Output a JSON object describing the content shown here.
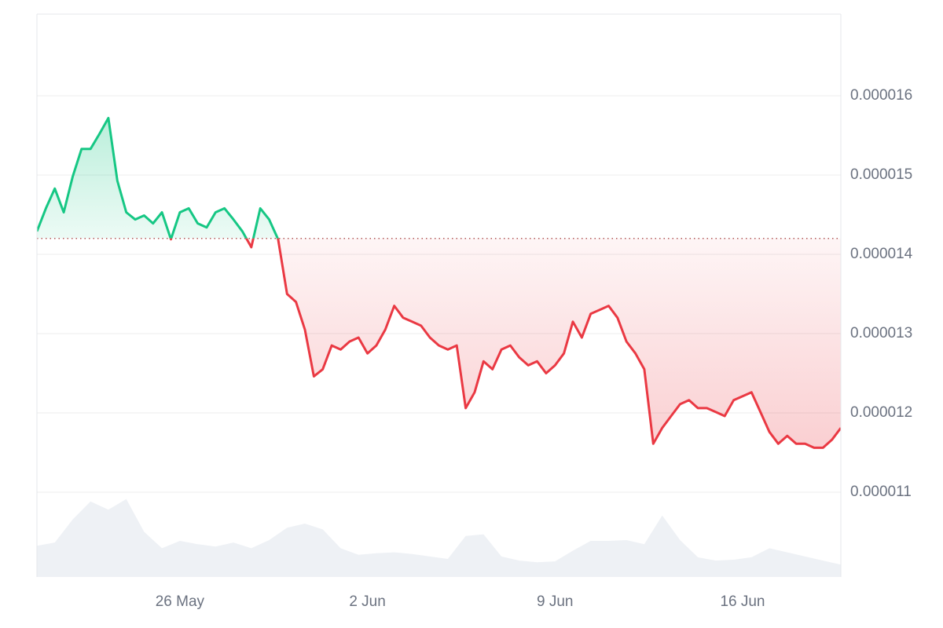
{
  "chart_data": {
    "type": "line",
    "categories": [
      null,
      null,
      null,
      null,
      null,
      null,
      null,
      null,
      null,
      null,
      null,
      null,
      null,
      null,
      null,
      null,
      "26 May",
      null,
      null,
      null,
      null,
      null,
      null,
      null,
      null,
      null,
      null,
      null,
      null,
      null,
      null,
      null,
      null,
      null,
      null,
      null,
      null,
      "2 Jun",
      null,
      null,
      null,
      null,
      null,
      null,
      null,
      null,
      null,
      null,
      null,
      null,
      null,
      null,
      null,
      null,
      null,
      null,
      null,
      null,
      "9 Jun",
      null,
      null,
      null,
      null,
      null,
      null,
      null,
      null,
      null,
      null,
      null,
      null,
      null,
      null,
      null,
      null,
      null,
      null,
      null,
      null,
      "16 Jun",
      null,
      null,
      null,
      null,
      null,
      null,
      null,
      null,
      null,
      null,
      null
    ],
    "values": [
      1.429e-05,
      1.458e-05,
      1.483e-05,
      1.453e-05,
      1.498e-05,
      1.533e-05,
      1.533e-05,
      1.552e-05,
      1.572e-05,
      1.493e-05,
      1.453e-05,
      1.444e-05,
      1.449e-05,
      1.439e-05,
      1.453e-05,
      1.419e-05,
      1.453e-05,
      1.458e-05,
      1.439e-05,
      1.434e-05,
      1.453e-05,
      1.458e-05,
      1.444e-05,
      1.429e-05,
      1.409e-05,
      1.458e-05,
      1.444e-05,
      1.419e-05,
      1.35e-05,
      1.34e-05,
      1.305e-05,
      1.246e-05,
      1.255e-05,
      1.285e-05,
      1.28e-05,
      1.29e-05,
      1.295e-05,
      1.275e-05,
      1.285e-05,
      1.305e-05,
      1.335e-05,
      1.32e-05,
      1.315e-05,
      1.31e-05,
      1.295e-05,
      1.285e-05,
      1.28e-05,
      1.285e-05,
      1.206e-05,
      1.226e-05,
      1.265e-05,
      1.255e-05,
      1.28e-05,
      1.285e-05,
      1.27e-05,
      1.26e-05,
      1.265e-05,
      1.25e-05,
      1.26e-05,
      1.275e-05,
      1.315e-05,
      1.295e-05,
      1.325e-05,
      1.33e-05,
      1.335e-05,
      1.32e-05,
      1.29e-05,
      1.275e-05,
      1.255e-05,
      1.161e-05,
      1.181e-05,
      1.196e-05,
      1.211e-05,
      1.216e-05,
      1.206e-05,
      1.206e-05,
      1.201e-05,
      1.196e-05,
      1.216e-05,
      1.221e-05,
      1.226e-05,
      1.201e-05,
      1.176e-05,
      1.161e-05,
      1.171e-05,
      1.161e-05,
      1.161e-05,
      1.156e-05,
      1.156e-05,
      1.166e-05,
      1.181e-05
    ],
    "baseline": 1.42e-05,
    "colors": {
      "up": "#16c784",
      "down": "#ea3943"
    },
    "ylim": [
      9.93e-06,
      1.703e-05
    ],
    "yticks": [
      1.1e-05,
      1.2e-05,
      1.3e-05,
      1.4e-05,
      1.5e-05,
      1.6e-05
    ],
    "grid": true,
    "volume": {
      "color": "#eef1f5",
      "vlim": [
        0,
        110
      ],
      "values": [
        38,
        42,
        70,
        92,
        82,
        95,
        55,
        35,
        44,
        40,
        37,
        42,
        35,
        45,
        60,
        65,
        58,
        35,
        27,
        29,
        30,
        28,
        25,
        22,
        50,
        52,
        25,
        20,
        18,
        19,
        32,
        44,
        44,
        45,
        40,
        75,
        45,
        24,
        20,
        21,
        24,
        35,
        30,
        25,
        20,
        15
      ]
    }
  }
}
